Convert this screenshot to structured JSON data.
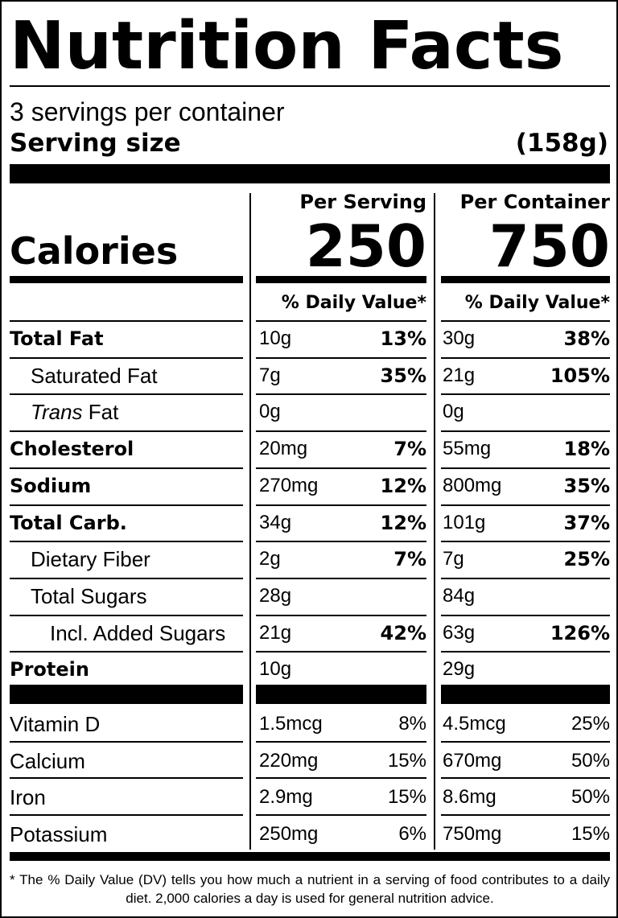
{
  "title": "Nutrition Facts",
  "servings_per_container": "3 servings per container",
  "serving_size_label": "Serving size",
  "serving_size_value": "(158g)",
  "per_serving_label": "Per Serving",
  "per_container_label": "Per Container",
  "calories_label": "Calories",
  "calories_per_serving": "250",
  "calories_per_container": "750",
  "daily_value_header": "% Daily Value*",
  "nutrients": [
    {
      "name": "Total Fat",
      "style": "bold",
      "serving_amount": "10g",
      "serving_dv": "13%",
      "container_amount": "30g",
      "container_dv": "38%"
    },
    {
      "name": "Saturated Fat",
      "style": "indent1",
      "serving_amount": "7g",
      "serving_dv": "35%",
      "container_amount": "21g",
      "container_dv": "105%"
    },
    {
      "name_italic": "Trans",
      "name": " Fat",
      "style": "indent1",
      "serving_amount": "0g",
      "serving_dv": "",
      "container_amount": "0g",
      "container_dv": ""
    },
    {
      "name": "Cholesterol",
      "style": "bold",
      "serving_amount": "20mg",
      "serving_dv": "7%",
      "container_amount": "55mg",
      "container_dv": "18%"
    },
    {
      "name": "Sodium",
      "style": "bold",
      "serving_amount": "270mg",
      "serving_dv": "12%",
      "container_amount": "800mg",
      "container_dv": "35%"
    },
    {
      "name": "Total Carb.",
      "style": "bold",
      "serving_amount": "34g",
      "serving_dv": "12%",
      "container_amount": "101g",
      "container_dv": "37%"
    },
    {
      "name": "Dietary Fiber",
      "style": "indent1",
      "serving_amount": "2g",
      "serving_dv": "7%",
      "container_amount": "7g",
      "container_dv": "25%"
    },
    {
      "name": "Total Sugars",
      "style": "indent1",
      "serving_amount": "28g",
      "serving_dv": "",
      "container_amount": "84g",
      "container_dv": ""
    },
    {
      "name": "Incl. Added Sugars",
      "style": "indent2",
      "serving_amount": "21g",
      "serving_dv": "42%",
      "container_amount": "63g",
      "container_dv": "126%"
    },
    {
      "name": "Protein",
      "style": "bold",
      "serving_amount": "10g",
      "serving_dv": "",
      "container_amount": "29g",
      "container_dv": ""
    }
  ],
  "micronutrients": [
    {
      "name": "Vitamin D",
      "serving_amount": "1.5mcg",
      "serving_dv": "8%",
      "container_amount": "4.5mcg",
      "container_dv": "25%"
    },
    {
      "name": "Calcium",
      "serving_amount": "220mg",
      "serving_dv": "15%",
      "container_amount": "670mg",
      "container_dv": "50%"
    },
    {
      "name": "Iron",
      "serving_amount": "2.9mg",
      "serving_dv": "15%",
      "container_amount": "8.6mg",
      "container_dv": "50%"
    },
    {
      "name": "Potassium",
      "serving_amount": "250mg",
      "serving_dv": "6%",
      "container_amount": "750mg",
      "container_dv": "15%"
    }
  ],
  "footnote": "* The % Daily Value (DV) tells you how much a nutrient in a serving of food contributes to a daily diet. 2,000 calories a day is used for general nutrition advice."
}
